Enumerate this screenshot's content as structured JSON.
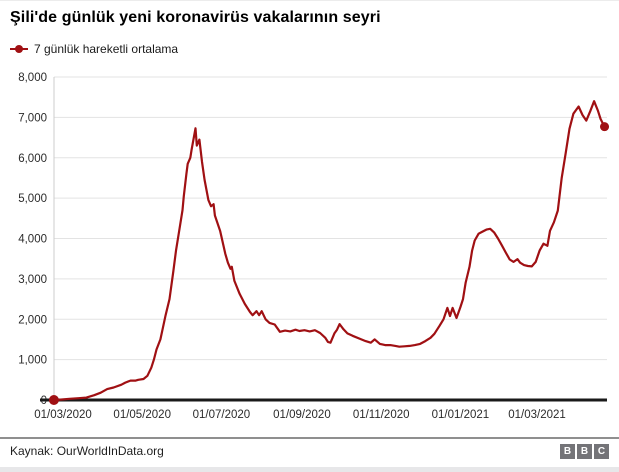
{
  "header": {
    "title": "Şili'de günlük yeni koronavirüs vakalarının seyri"
  },
  "legend": {
    "label": "7 günlük hareketli ortalama",
    "marker_color": "#a01013"
  },
  "footer": {
    "source": "Kaynak: OurWorldInData.org",
    "logo_letters": [
      "B",
      "B",
      "C"
    ]
  },
  "chart_data": {
    "type": "line",
    "title": "Şili'de günlük yeni koronavirüs vakalarının seyri",
    "series_name": "7 günlük hareketli ortalama",
    "xlabel": "",
    "ylabel": "",
    "ylim": [
      0,
      8000
    ],
    "grid": true,
    "legend_position": "top-left",
    "colors": {
      "line": "#a01013",
      "grid": "#e3e3e3",
      "axis": "#1a1a1a",
      "tick_text": "#2b2b2b"
    },
    "x_axis": {
      "tick_labels": [
        "01/03/2020",
        "01/05/2020",
        "01/07/2020",
        "01/09/2020",
        "01/11/2020",
        "01/01/2021",
        "01/03/2021"
      ],
      "tick_days": [
        0,
        61,
        122,
        184,
        245,
        306,
        365
      ],
      "day_zero_date": "01/03/2020"
    },
    "y_axis": {
      "ticks": [
        0,
        1000,
        2000,
        3000,
        4000,
        5000,
        6000,
        7000,
        8000
      ],
      "tick_labels": [
        "0",
        "1,000",
        "2,000",
        "3,000",
        "4,000",
        "5,000",
        "6,000",
        "7,000",
        "8,000"
      ]
    },
    "points": [
      [
        -7,
        0
      ],
      [
        -2,
        10
      ],
      [
        5,
        30
      ],
      [
        12,
        45
      ],
      [
        18,
        60
      ],
      [
        24,
        120
      ],
      [
        29,
        180
      ],
      [
        34,
        270
      ],
      [
        39,
        310
      ],
      [
        45,
        380
      ],
      [
        48,
        430
      ],
      [
        52,
        480
      ],
      [
        56,
        480
      ],
      [
        58,
        500
      ],
      [
        62,
        520
      ],
      [
        65,
        600
      ],
      [
        68,
        800
      ],
      [
        70,
        1000
      ],
      [
        72,
        1250
      ],
      [
        75,
        1500
      ],
      [
        77,
        1800
      ],
      [
        79,
        2100
      ],
      [
        82,
        2500
      ],
      [
        85,
        3200
      ],
      [
        87,
        3700
      ],
      [
        89,
        4100
      ],
      [
        92,
        4700
      ],
      [
        93,
        5050
      ],
      [
        95,
        5600
      ],
      [
        96,
        5850
      ],
      [
        98,
        6000
      ],
      [
        99,
        6200
      ],
      [
        102,
        6730
      ],
      [
        103,
        6300
      ],
      [
        105,
        6450
      ],
      [
        107,
        5900
      ],
      [
        109,
        5450
      ],
      [
        112,
        4950
      ],
      [
        114,
        4800
      ],
      [
        116,
        4850
      ],
      [
        117,
        4570
      ],
      [
        121,
        4190
      ],
      [
        125,
        3620
      ],
      [
        127,
        3400
      ],
      [
        129,
        3250
      ],
      [
        130,
        3300
      ],
      [
        132,
        2950
      ],
      [
        136,
        2630
      ],
      [
        140,
        2380
      ],
      [
        144,
        2180
      ],
      [
        146,
        2100
      ],
      [
        149,
        2200
      ],
      [
        151,
        2100
      ],
      [
        153,
        2200
      ],
      [
        156,
        2000
      ],
      [
        159,
        1910
      ],
      [
        163,
        1870
      ],
      [
        167,
        1690
      ],
      [
        171,
        1720
      ],
      [
        175,
        1700
      ],
      [
        179,
        1740
      ],
      [
        182,
        1710
      ],
      [
        186,
        1730
      ],
      [
        190,
        1700
      ],
      [
        194,
        1730
      ],
      [
        198,
        1660
      ],
      [
        202,
        1540
      ],
      [
        204,
        1440
      ],
      [
        206,
        1420
      ],
      [
        209,
        1650
      ],
      [
        211,
        1740
      ],
      [
        213,
        1880
      ],
      [
        216,
        1750
      ],
      [
        219,
        1650
      ],
      [
        223,
        1590
      ],
      [
        229,
        1510
      ],
      [
        233,
        1460
      ],
      [
        237,
        1420
      ],
      [
        240,
        1500
      ],
      [
        244,
        1390
      ],
      [
        248,
        1360
      ],
      [
        252,
        1360
      ],
      [
        256,
        1340
      ],
      [
        259,
        1320
      ],
      [
        263,
        1330
      ],
      [
        267,
        1340
      ],
      [
        271,
        1360
      ],
      [
        275,
        1390
      ],
      [
        279,
        1460
      ],
      [
        283,
        1540
      ],
      [
        286,
        1640
      ],
      [
        290,
        1840
      ],
      [
        293,
        2000
      ],
      [
        296,
        2280
      ],
      [
        298,
        2080
      ],
      [
        300,
        2280
      ],
      [
        303,
        2030
      ],
      [
        306,
        2300
      ],
      [
        308,
        2500
      ],
      [
        310,
        2900
      ],
      [
        313,
        3300
      ],
      [
        315,
        3700
      ],
      [
        317,
        3950
      ],
      [
        320,
        4120
      ],
      [
        323,
        4170
      ],
      [
        326,
        4220
      ],
      [
        329,
        4240
      ],
      [
        332,
        4150
      ],
      [
        335,
        4000
      ],
      [
        338,
        3830
      ],
      [
        341,
        3650
      ],
      [
        344,
        3480
      ],
      [
        347,
        3420
      ],
      [
        350,
        3490
      ],
      [
        352,
        3400
      ],
      [
        355,
        3340
      ],
      [
        358,
        3320
      ],
      [
        361,
        3310
      ],
      [
        364,
        3420
      ],
      [
        367,
        3700
      ],
      [
        370,
        3870
      ],
      [
        373,
        3820
      ],
      [
        375,
        4190
      ],
      [
        378,
        4400
      ],
      [
        381,
        4690
      ],
      [
        384,
        5500
      ],
      [
        387,
        6100
      ],
      [
        390,
        6720
      ],
      [
        393,
        7090
      ],
      [
        397,
        7270
      ],
      [
        400,
        7060
      ],
      [
        403,
        6920
      ],
      [
        406,
        7150
      ],
      [
        409,
        7400
      ],
      [
        412,
        7160
      ],
      [
        414,
        6960
      ],
      [
        417,
        6770
      ]
    ],
    "end_point_value": 6770,
    "start_point_value": 0
  }
}
